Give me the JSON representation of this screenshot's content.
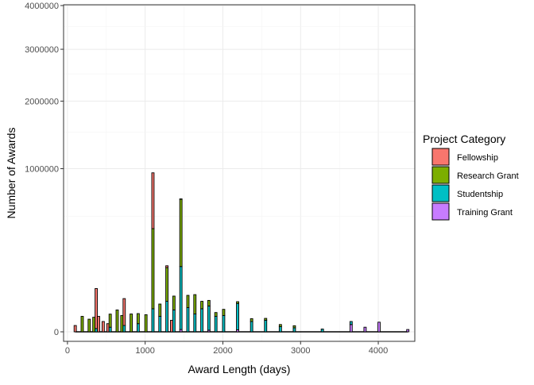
{
  "chart_data": {
    "type": "bar",
    "title": "",
    "xlabel": "Award Length (days)",
    "ylabel": "Number of Awards",
    "y_scale": "pseudo-log (square-root style) count axis",
    "xlim": [
      -50,
      4470
    ],
    "x_ticks": [
      0,
      1000,
      2000,
      3000,
      4000
    ],
    "x_tick_labels": [
      "0",
      "1000",
      "2000",
      "3000",
      "4000"
    ],
    "y_ticks": [
      0,
      1000000,
      2000000,
      3000000,
      4000000
    ],
    "y_tick_labels": [
      "0",
      "1000000",
      "2000000",
      "3000000",
      "4000000"
    ],
    "grid": true,
    "legend_position": "right",
    "legend": {
      "title": "Project Category",
      "entries": [
        {
          "name": "Fellowship",
          "color": "#F8766D"
        },
        {
          "name": "Research Grant",
          "color": "#7CAE00"
        },
        {
          "name": "Studentship",
          "color": "#00BFC4"
        },
        {
          "name": "Training Grant",
          "color": "#C77CFF"
        }
      ]
    },
    "bin_width_days": 30,
    "stack_order_bottom_to_top": [
      "Training Grant",
      "Studentship",
      "Research Grant",
      "Fellowship"
    ],
    "series": [
      {
        "name": "Fellowship",
        "color": "#F8766D",
        "x": [
          100,
          370,
          400,
          460,
          520,
          730,
          1100,
          1280,
          1340,
          1460
        ],
        "values": [
          1500,
          70000,
          9000,
          4000,
          2500,
          40000,
          550000,
          9000,
          5000,
          4000
        ]
      },
      {
        "name": "Research Grant",
        "color": "#7CAE00",
        "x": [
          190,
          280,
          340,
          550,
          640,
          700,
          820,
          910,
          1010,
          1100,
          1190,
          1280,
          1370,
          1460,
          1550,
          1640,
          1730,
          1820,
          1910,
          2010,
          2190,
          2370,
          2550,
          2740,
          2920
        ],
        "values": [
          9000,
          6000,
          8000,
          11000,
          18000,
          10000,
          12000,
          10000,
          11000,
          380000,
          20000,
          120000,
          30000,
          500000,
          28000,
          40000,
          15000,
          12000,
          5000,
          9000,
          4000,
          2500,
          1800,
          1000,
          800
        ]
      },
      {
        "name": "Studentship",
        "color": "#00BFC4",
        "x": [
          370,
          550,
          730,
          910,
          1100,
          1190,
          1280,
          1370,
          1460,
          1550,
          1640,
          1730,
          1820,
          1910,
          2010,
          2190,
          2370,
          2550,
          2740,
          2920,
          3280,
          3650
        ],
        "values": [
          400,
          800,
          1500,
          2500,
          20000,
          9000,
          35000,
          18000,
          160000,
          22000,
          12000,
          20000,
          25000,
          9000,
          10000,
          30000,
          4000,
          5000,
          1000,
          600,
          300,
          2000
        ]
      },
      {
        "name": "Training Grant",
        "color": "#C77CFF",
        "x": [
          1460,
          1820,
          2190,
          3650,
          3830,
          4010,
          4380
        ],
        "values": [
          200,
          100,
          150,
          2000,
          800,
          3500,
          200
        ]
      }
    ]
  }
}
